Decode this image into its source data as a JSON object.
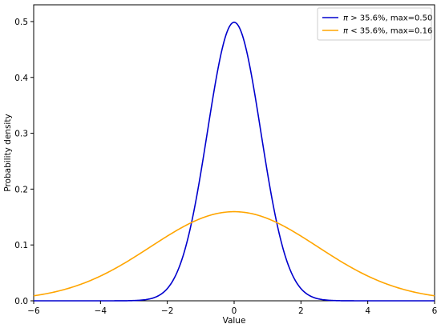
{
  "chart_data": {
    "type": "line",
    "title": "",
    "xlabel": "Value",
    "ylabel": "Probability density",
    "xlim": [
      -6,
      6
    ],
    "ylim": [
      0,
      0.53
    ],
    "xticks": [
      -6,
      -4,
      -2,
      0,
      2,
      4,
      6
    ],
    "xtick_labels": [
      "−6",
      "−4",
      "−2",
      "0",
      "2",
      "4",
      "6"
    ],
    "yticks": [
      0.0,
      0.1,
      0.2,
      0.3,
      0.4,
      0.5
    ],
    "ytick_labels": [
      "0.0",
      "0.1",
      "0.2",
      "0.3",
      "0.4",
      "0.5"
    ],
    "grid": false,
    "legend_position": "top-right",
    "series": [
      {
        "name_prefix": "π",
        "name": " > 35.6%, max=0.50",
        "color": "#0000cd",
        "distribution": "normal",
        "mean": 0,
        "sd": 0.8,
        "max": 0.5
      },
      {
        "name_prefix": "π",
        "name": " < 35.6%, max=0.16",
        "color": "#ffa500",
        "distribution": "normal",
        "mean": 0,
        "sd": 2.5,
        "max": 0.16
      }
    ]
  }
}
